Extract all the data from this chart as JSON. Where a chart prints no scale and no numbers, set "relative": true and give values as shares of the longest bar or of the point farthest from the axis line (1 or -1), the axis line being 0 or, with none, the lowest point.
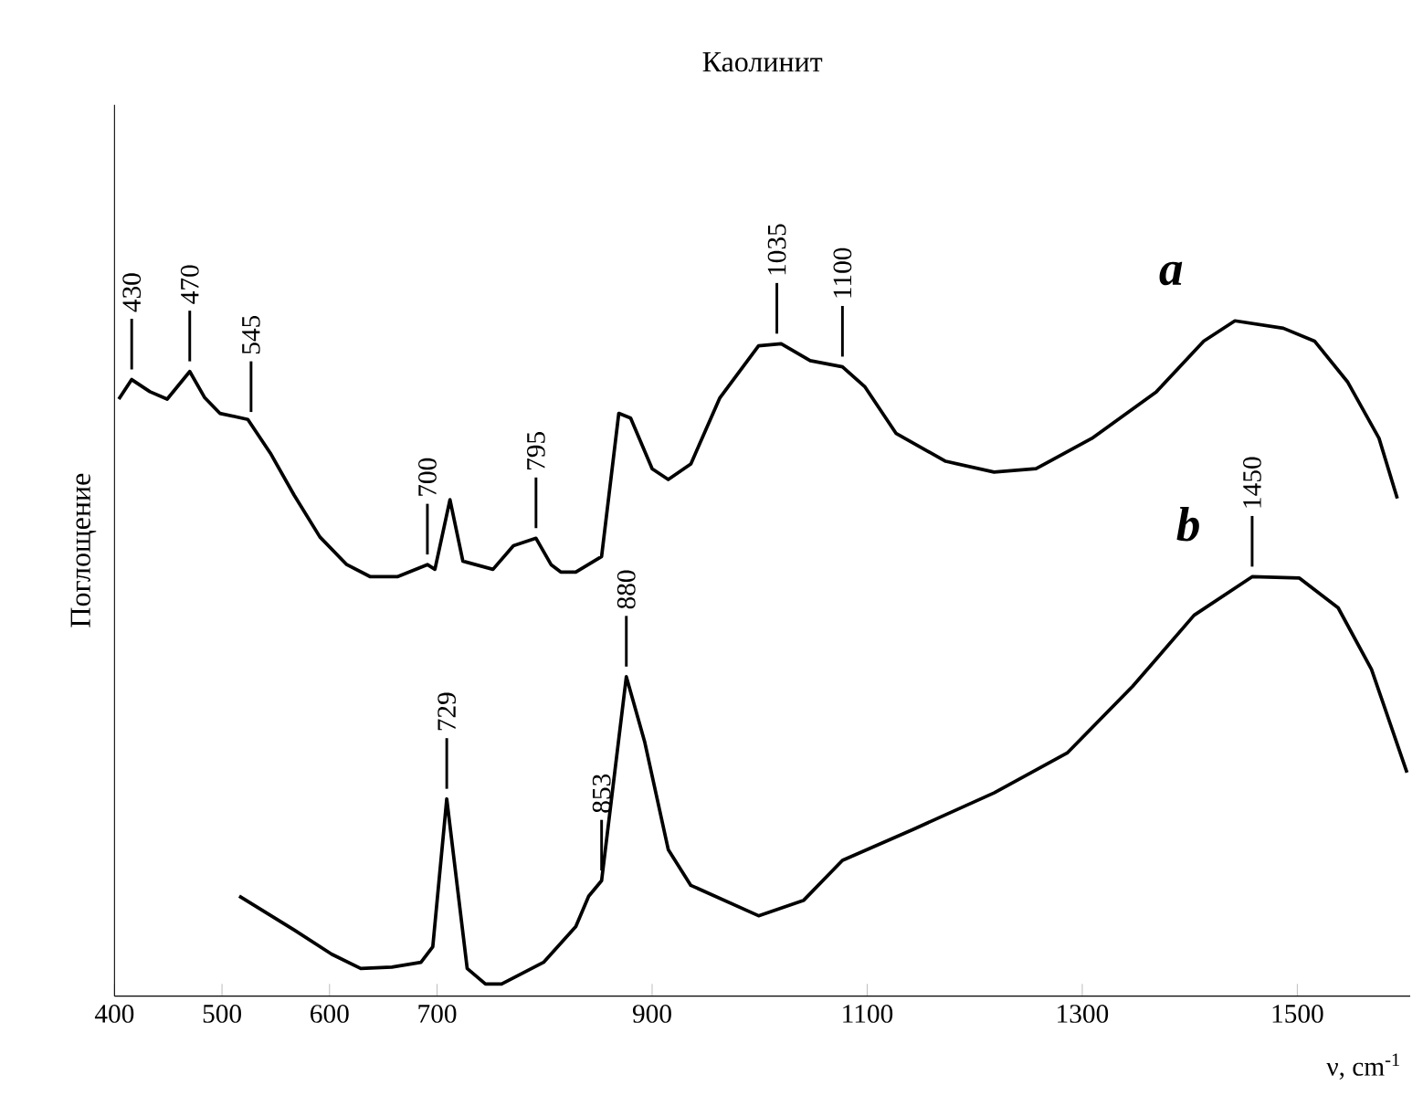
{
  "chart_data": {
    "type": "line",
    "title": "Каолинит",
    "xlabel": "ν, cm$^{-1}$",
    "ylabel": "Поглощение",
    "relative": true,
    "xlim": [
      400,
      1605
    ],
    "xticks": [
      400,
      500,
      600,
      700,
      900,
      1100,
      1300,
      1500
    ],
    "series": [
      {
        "name": "a",
        "color": "#000000",
        "x": [
          404,
          416,
          433,
          449,
          470,
          484,
          498,
          524,
          545,
          567,
          591,
          616,
          638,
          663,
          691,
          698,
          712,
          724,
          752,
          771,
          792,
          806,
          815,
          829,
          853,
          869,
          880,
          900,
          915,
          936,
          963,
          999,
          1020,
          1047,
          1077,
          1098,
          1127,
          1173,
          1218,
          1257,
          1309,
          1369,
          1413,
          1442,
          1487,
          1516,
          1547,
          1576,
          1593
        ],
        "values": [
          0.884,
          0.913,
          0.895,
          0.884,
          0.925,
          0.886,
          0.863,
          0.854,
          0.804,
          0.742,
          0.68,
          0.639,
          0.621,
          0.621,
          0.639,
          0.632,
          0.735,
          0.644,
          0.632,
          0.667,
          0.678,
          0.639,
          0.628,
          0.628,
          0.651,
          0.863,
          0.856,
          0.781,
          0.765,
          0.788,
          0.886,
          0.963,
          0.966,
          0.941,
          0.932,
          0.902,
          0.833,
          0.792,
          0.776,
          0.781,
          0.826,
          0.895,
          0.97,
          1.0,
          0.989,
          0.97,
          0.909,
          0.826,
          0.737
        ]
      },
      {
        "name": "b",
        "color": "#000000",
        "x": [
          516,
          567,
          602,
          629,
          658,
          685,
          696,
          709,
          728,
          745,
          760,
          799,
          829,
          841,
          853,
          876,
          893,
          915,
          936,
          999,
          1041,
          1077,
          1143,
          1218,
          1286,
          1347,
          1404,
          1458,
          1502,
          1538,
          1569,
          1602
        ],
        "values": [
          0.148,
          0.098,
          0.062,
          0.041,
          0.043,
          0.05,
          0.073,
          0.292,
          0.041,
          0.018,
          0.018,
          0.05,
          0.103,
          0.148,
          0.171,
          0.473,
          0.377,
          0.217,
          0.164,
          0.119,
          0.142,
          0.201,
          0.247,
          0.301,
          0.36,
          0.459,
          0.564,
          0.621,
          0.619,
          0.575,
          0.484,
          0.331
        ]
      }
    ],
    "annotations": [
      {
        "text": "430",
        "x": 416,
        "y": 0.913
      },
      {
        "text": "470",
        "x": 470,
        "y": 0.925
      },
      {
        "text": "545",
        "x": 527,
        "y": 0.85
      },
      {
        "text": "700",
        "x": 691,
        "y": 0.639
      },
      {
        "text": "795",
        "x": 792,
        "y": 0.678
      },
      {
        "text": "1035",
        "x": 1016,
        "y": 0.966
      },
      {
        "text": "1100",
        "x": 1077,
        "y": 0.932
      },
      {
        "text": "1450",
        "x": 1458,
        "y": 0.621
      },
      {
        "text": "729",
        "x": 709,
        "y": 0.292
      },
      {
        "text": "853",
        "x": 853,
        "y": 0.171
      },
      {
        "text": "880",
        "x": 876,
        "y": 0.473
      }
    ],
    "line_style": "solid",
    "marker": "none",
    "grid": false
  }
}
